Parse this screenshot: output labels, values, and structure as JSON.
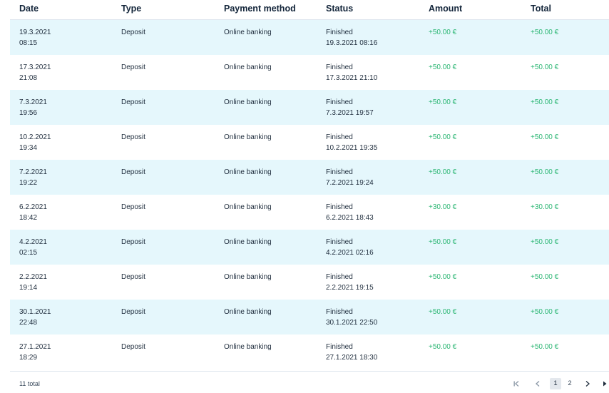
{
  "table": {
    "columns": [
      "Date",
      "Type",
      "Payment method",
      "Status",
      "Amount",
      "Total"
    ],
    "rows": [
      {
        "date": "19.3.2021",
        "time": "08:15",
        "type": "Deposit",
        "method": "Online banking",
        "status": "Finished",
        "status_time": "19.3.2021 08:16",
        "amount": "+50.00 €",
        "total": "+50.00 €"
      },
      {
        "date": "17.3.2021",
        "time": "21:08",
        "type": "Deposit",
        "method": "Online banking",
        "status": "Finished",
        "status_time": "17.3.2021 21:10",
        "amount": "+50.00 €",
        "total": "+50.00 €"
      },
      {
        "date": "7.3.2021",
        "time": "19:56",
        "type": "Deposit",
        "method": "Online banking",
        "status": "Finished",
        "status_time": "7.3.2021 19:57",
        "amount": "+50.00 €",
        "total": "+50.00 €"
      },
      {
        "date": "10.2.2021",
        "time": "19:34",
        "type": "Deposit",
        "method": "Online banking",
        "status": "Finished",
        "status_time": "10.2.2021 19:35",
        "amount": "+50.00 €",
        "total": "+50.00 €"
      },
      {
        "date": "7.2.2021",
        "time": "19:22",
        "type": "Deposit",
        "method": "Online banking",
        "status": "Finished",
        "status_time": "7.2.2021 19:24",
        "amount": "+50.00 €",
        "total": "+50.00 €"
      },
      {
        "date": "6.2.2021",
        "time": "18:42",
        "type": "Deposit",
        "method": "Online banking",
        "status": "Finished",
        "status_time": "6.2.2021 18:43",
        "amount": "+30.00 €",
        "total": "+30.00 €"
      },
      {
        "date": "4.2.2021",
        "time": "02:15",
        "type": "Deposit",
        "method": "Online banking",
        "status": "Finished",
        "status_time": "4.2.2021 02:16",
        "amount": "+50.00 €",
        "total": "+50.00 €"
      },
      {
        "date": "2.2.2021",
        "time": "19:14",
        "type": "Deposit",
        "method": "Online banking",
        "status": "Finished",
        "status_time": "2.2.2021 19:15",
        "amount": "+50.00 €",
        "total": "+50.00 €"
      },
      {
        "date": "30.1.2021",
        "time": "22:48",
        "type": "Deposit",
        "method": "Online banking",
        "status": "Finished",
        "status_time": "30.1.2021 22:50",
        "amount": "+50.00 €",
        "total": "+50.00 €"
      },
      {
        "date": "27.1.2021",
        "time": "18:29",
        "type": "Deposit",
        "method": "Online banking",
        "status": "Finished",
        "status_time": "27.1.2021 18:30",
        "amount": "+50.00 €",
        "total": "+50.00 €"
      }
    ]
  },
  "footer": {
    "total_text": "11 total",
    "pages": [
      "1",
      "2"
    ],
    "current_page": "1",
    "icons": {
      "first": "first-page-icon",
      "prev": "chevron-left-icon",
      "next": "chevron-right-icon",
      "last": "last-page-icon"
    }
  },
  "colors": {
    "alt_row": "#e5f7fc",
    "amount": "#2bb673",
    "text": "#1f2d3d"
  }
}
